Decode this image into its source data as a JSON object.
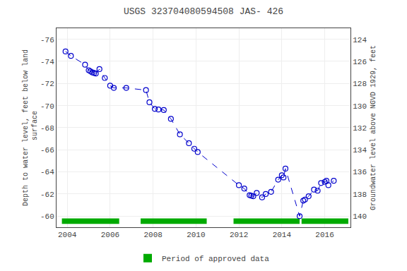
{
  "chart_data": {
    "type": "line",
    "title": "USGS 323704080594508 JAS- 426",
    "ylabel": "Depth to water level, feet below land\n surface",
    "y2label": "Groundwater level above NGVD 1929, feet",
    "x": [
      2003.92,
      2004.17,
      2004.83,
      2005.0,
      2005.08,
      2005.17,
      2005.25,
      2005.33,
      2005.5,
      2005.75,
      2006.0,
      2006.17,
      2006.75,
      2007.67,
      2007.83,
      2008.08,
      2008.25,
      2008.5,
      2008.83,
      2009.25,
      2009.67,
      2009.92,
      2010.08,
      2012.0,
      2012.25,
      2012.5,
      2012.58,
      2012.67,
      2012.83,
      2013.08,
      2013.25,
      2013.5,
      2013.83,
      2014.0,
      2014.08,
      2014.17,
      2014.83,
      2015.0,
      2015.08,
      2015.25,
      2015.5,
      2015.67,
      2015.83,
      2016.0,
      2016.08,
      2016.17,
      2016.42
    ],
    "series": [
      {
        "values": [
          -74.9,
          -74.5,
          -73.7,
          -73.2,
          -73.1,
          -73.0,
          -72.95,
          -72.9,
          -73.3,
          -72.5,
          -71.8,
          -71.6,
          -71.6,
          -71.4,
          -70.3,
          -69.7,
          -69.65,
          -69.6,
          -68.8,
          -67.4,
          -66.6,
          -66.1,
          -65.8,
          -62.8,
          -62.5,
          -61.9,
          -61.85,
          -61.8,
          -62.1,
          -61.7,
          -62.0,
          -62.2,
          -63.3,
          -63.7,
          -63.5,
          -64.3,
          -60.0,
          -61.4,
          -61.5,
          -61.8,
          -62.4,
          -62.3,
          -63.0,
          -63.1,
          -63.2,
          -62.8,
          -63.2
        ],
        "color": "#0000CC",
        "marker": "circle-open",
        "line_style": "dash"
      },
      {
        "name": "Period of approved data",
        "type": "bar",
        "orientation": "horizontal",
        "color": "#00AA00",
        "periods": [
          [
            2003.75,
            2006.42
          ],
          [
            2007.42,
            2010.5
          ],
          [
            2011.75,
            2014.83
          ],
          [
            2014.92,
            2017.1
          ]
        ],
        "y": -59.55,
        "height": 0.5
      }
    ],
    "xlim": [
      2003.5,
      2017.2
    ],
    "xticks": [
      2004,
      2006,
      2008,
      2010,
      2012,
      2014,
      2016
    ],
    "ylim": [
      -59,
      -77
    ],
    "yticks": [
      -76,
      -74,
      -72,
      -70,
      -68,
      -66,
      -64,
      -62,
      -60
    ],
    "y2lim": [
      141,
      123
    ],
    "y2ticks": [
      140,
      138,
      136,
      134,
      132,
      130,
      128,
      126,
      124
    ],
    "grid": true,
    "legend": "bottom"
  }
}
